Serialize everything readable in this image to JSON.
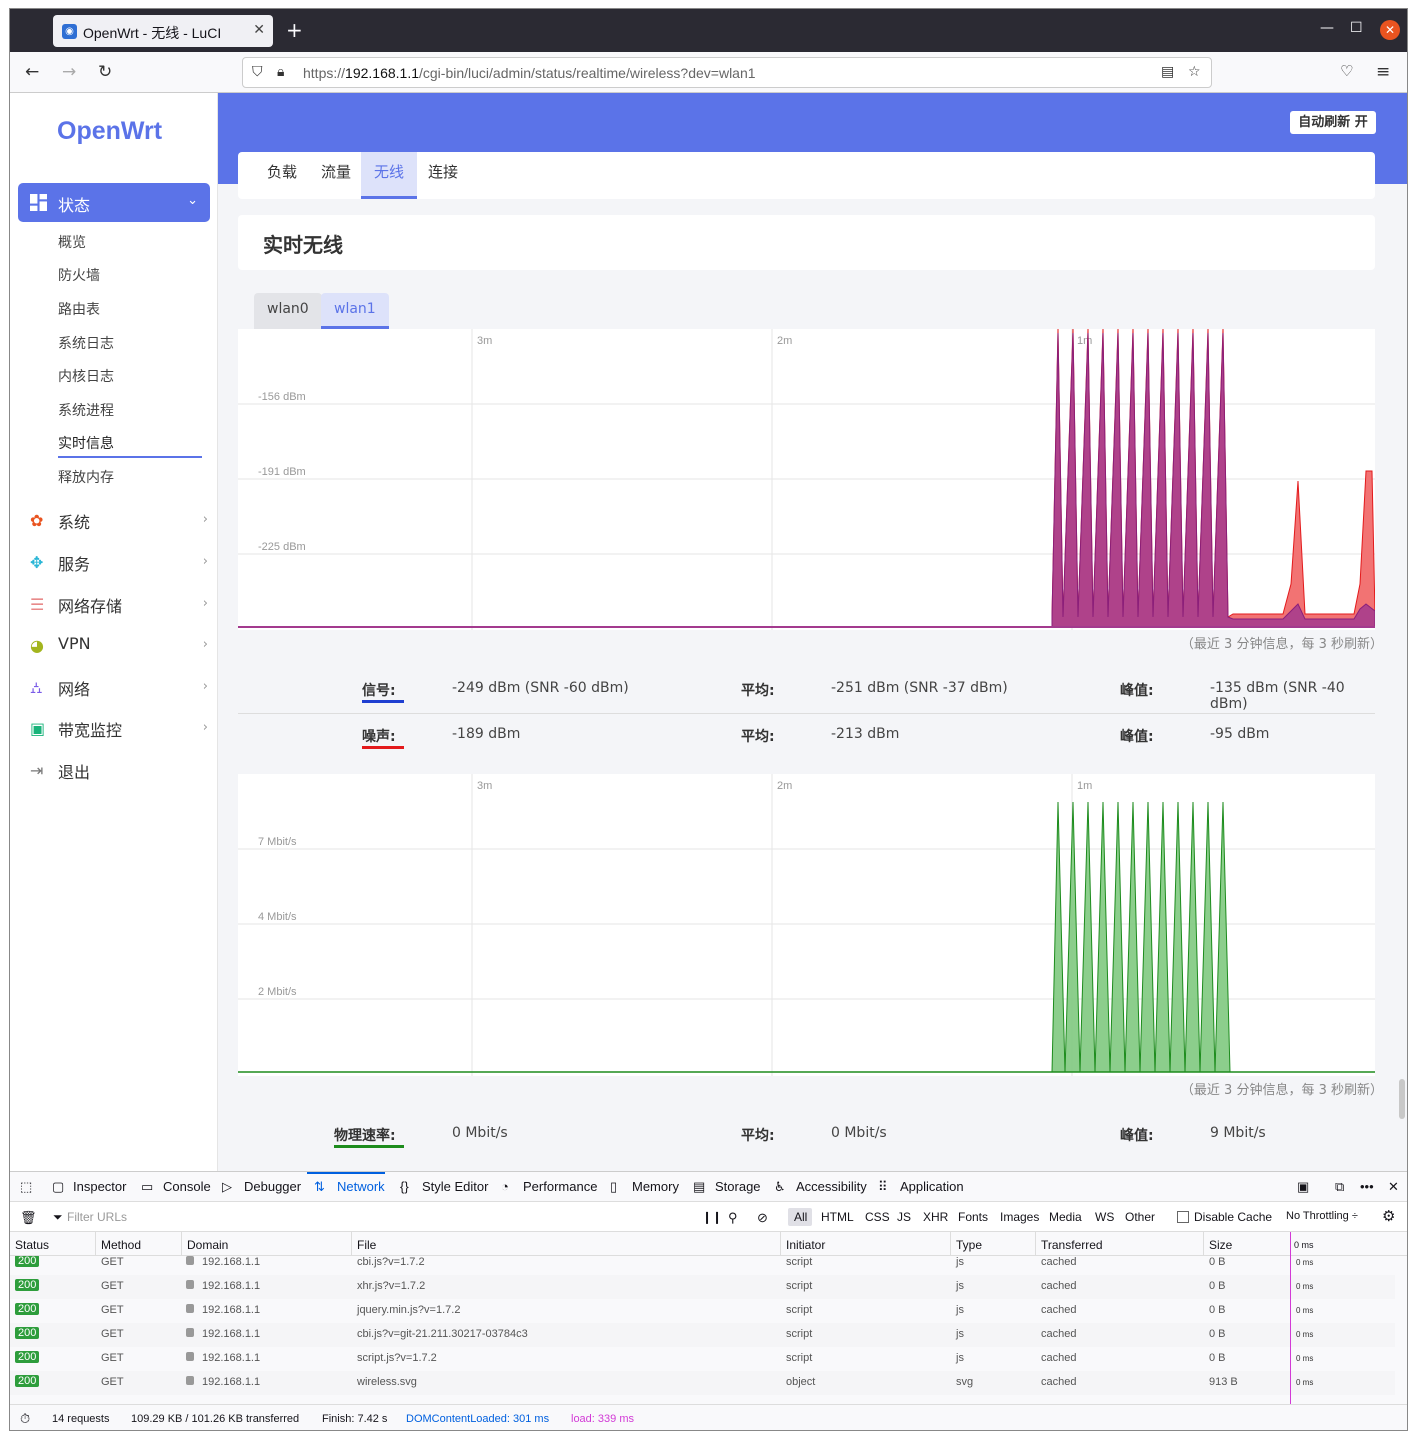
{
  "browser": {
    "tab_title": "OpenWrt - 无线 - LuCI",
    "url_prefix": "https://",
    "url_host": "192.168.1.1",
    "url_path": "/cgi-bin/luci/admin/status/realtime/wireless?dev=wlan1"
  },
  "sidebar": {
    "logo": "OpenWrt",
    "active_menu": "状态",
    "submenu": [
      "概览",
      "防火墙",
      "路由表",
      "系统日志",
      "内核日志",
      "系统进程",
      "实时信息",
      "释放内存"
    ],
    "menus": [
      {
        "label": "系统",
        "icon": "gear-icon",
        "color": "#e95420"
      },
      {
        "label": "服务",
        "icon": "services-icon",
        "color": "#2bb6d6"
      },
      {
        "label": "网络存储",
        "icon": "storage-icon",
        "color": "#e88a8a"
      },
      {
        "label": "VPN",
        "icon": "vpn-icon",
        "color": "#a3b51e"
      },
      {
        "label": "网络",
        "icon": "network-icon",
        "color": "#7a5be8"
      },
      {
        "label": "带宽监控",
        "icon": "monitor-icon",
        "color": "#19b37a"
      },
      {
        "label": "退出",
        "icon": "logout-icon",
        "color": "#777"
      }
    ]
  },
  "header": {
    "auto_refresh": "自动刷新 开"
  },
  "tabs": [
    "负载",
    "流量",
    "无线",
    "连接"
  ],
  "active_tab": "无线",
  "page_title": "实时无线",
  "interfaces": [
    "wlan0",
    "wlan1"
  ],
  "active_interface": "wlan1",
  "chart_data": [
    {
      "type": "area",
      "x_labels": [
        "3m",
        "2m",
        "1m"
      ],
      "y_labels": [
        "-156 dBm",
        "-191 dBm",
        "-225 dBm"
      ],
      "series": [
        {
          "name": "信号",
          "color": "#1f3fd1"
        },
        {
          "name": "噪声",
          "color": "#e31a1c"
        }
      ],
      "note": "（最近 3 分钟信息，每 3 秒刷新）"
    },
    {
      "type": "area",
      "x_labels": [
        "3m",
        "2m",
        "1m"
      ],
      "y_labels": [
        "7 Mbit/s",
        "4 Mbit/s",
        "2 Mbit/s"
      ],
      "series": [
        {
          "name": "物理速率",
          "color": "#1d8c1d"
        }
      ],
      "note": "（最近 3 分钟信息，每 3 秒刷新）"
    }
  ],
  "stats": {
    "signal": {
      "label": "信号:",
      "value": "-249 dBm (SNR -60 dBm)",
      "avg_label": "平均:",
      "avg": "-251 dBm (SNR -37 dBm)",
      "peak_label": "峰值:",
      "peak": "-135 dBm (SNR -40 dBm)"
    },
    "noise": {
      "label": "噪声:",
      "value": "-189 dBm",
      "avg_label": "平均:",
      "avg": "-213 dBm",
      "peak_label": "峰值:",
      "peak": "-95 dBm"
    },
    "rate": {
      "label": "物理速率:",
      "value": "0 Mbit/s",
      "avg_label": "平均:",
      "avg": "0 Mbit/s",
      "peak_label": "峰值:",
      "peak": "9 Mbit/s"
    }
  },
  "devtools": {
    "tabs": [
      "Inspector",
      "Console",
      "Debugger",
      "Network",
      "Style Editor",
      "Performance",
      "Memory",
      "Storage",
      "Accessibility",
      "Application"
    ],
    "active_tab": "Network",
    "filter_placeholder": "Filter URLs",
    "filters": [
      "All",
      "HTML",
      "CSS",
      "JS",
      "XHR",
      "Fonts",
      "Images",
      "Media",
      "WS",
      "Other"
    ],
    "disable_cache": "Disable Cache",
    "throttling": "No Throttling ÷",
    "columns": [
      "Status",
      "Method",
      "Domain",
      "File",
      "Initiator",
      "Type",
      "Transferred",
      "Size"
    ],
    "timeline_label": "0 ms",
    "rows": [
      {
        "status": "200",
        "method": "GET",
        "domain": "192.168.1.1",
        "file": "cbi.js?v=1.7.2",
        "initiator": "script",
        "type": "js",
        "transferred": "cached",
        "size": "0 B",
        "time": "0 ms"
      },
      {
        "status": "200",
        "method": "GET",
        "domain": "192.168.1.1",
        "file": "xhr.js?v=1.7.2",
        "initiator": "script",
        "type": "js",
        "transferred": "cached",
        "size": "0 B",
        "time": "0 ms"
      },
      {
        "status": "200",
        "method": "GET",
        "domain": "192.168.1.1",
        "file": "jquery.min.js?v=1.7.2",
        "initiator": "script",
        "type": "js",
        "transferred": "cached",
        "size": "0 B",
        "time": "0 ms"
      },
      {
        "status": "200",
        "method": "GET",
        "domain": "192.168.1.1",
        "file": "cbi.js?v=git-21.211.30217-03784c3",
        "initiator": "script",
        "type": "js",
        "transferred": "cached",
        "size": "0 B",
        "time": "0 ms"
      },
      {
        "status": "200",
        "method": "GET",
        "domain": "192.168.1.1",
        "file": "script.js?v=1.7.2",
        "initiator": "script",
        "type": "js",
        "transferred": "cached",
        "size": "0 B",
        "time": "0 ms"
      },
      {
        "status": "200",
        "method": "GET",
        "domain": "192.168.1.1",
        "file": "wireless.svg",
        "initiator": "object",
        "type": "svg",
        "transferred": "cached",
        "size": "913 B",
        "time": "0 ms"
      }
    ],
    "status_bar": {
      "requests": "14 requests",
      "transferred": "109.29 KB / 101.26 KB transferred",
      "finish": "Finish: 7.42 s",
      "dom": "DOMContentLoaded: 301 ms",
      "load": "load: 339 ms"
    }
  }
}
